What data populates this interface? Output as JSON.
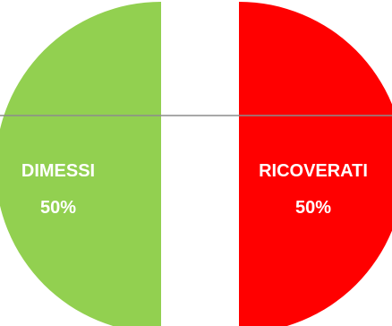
{
  "chart_data": {
    "type": "pie",
    "title": "",
    "slices": [
      {
        "name": "DIMESSI",
        "value": 50,
        "label": "50%",
        "color": "#92D050"
      },
      {
        "name": "RICOVERATI",
        "value": 50,
        "label": "50%",
        "color": "#FF0000"
      }
    ],
    "exploded": true,
    "legend": "none"
  }
}
